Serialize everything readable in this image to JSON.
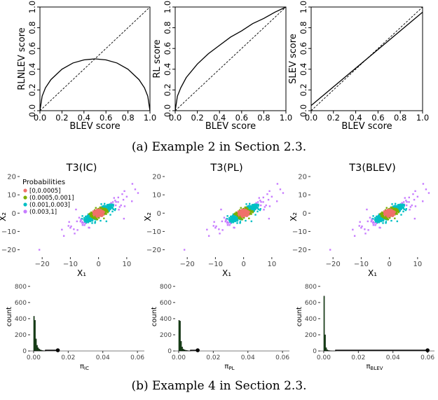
{
  "figure": {
    "caption_a": "(a) Example 2 in Section 2.3.",
    "caption_b": "(b) Example 4 in Section 2.3."
  },
  "chart_data": [
    {
      "id": "a1",
      "type": "line",
      "xlabel": "BLEV score",
      "ylabel": "RLNLEV score",
      "xlim": [
        0,
        1
      ],
      "ylim": [
        0,
        1
      ],
      "ticks": [
        "0.0",
        "0.2",
        "0.4",
        "0.6",
        "0.8",
        "1.0"
      ],
      "series": [
        {
          "style": "solid",
          "x": [
            0,
            0.02,
            0.05,
            0.1,
            0.2,
            0.3,
            0.4,
            0.5,
            0.6,
            0.7,
            0.8,
            0.9,
            0.95,
            0.98,
            1.0
          ],
          "y": [
            0,
            0.14,
            0.22,
            0.3,
            0.4,
            0.46,
            0.49,
            0.5,
            0.49,
            0.46,
            0.4,
            0.3,
            0.22,
            0.14,
            0
          ]
        },
        {
          "style": "dashed",
          "x": [
            0,
            1
          ],
          "y": [
            0,
            1
          ]
        }
      ]
    },
    {
      "id": "a2",
      "type": "line",
      "xlabel": "BLEV score",
      "ylabel": "RL score",
      "xlim": [
        0,
        1
      ],
      "ylim": [
        0,
        1
      ],
      "ticks": [
        "0.0",
        "0.2",
        "0.4",
        "0.6",
        "0.8",
        "1.0"
      ],
      "series": [
        {
          "style": "solid",
          "x": [
            0,
            0.02,
            0.05,
            0.1,
            0.2,
            0.3,
            0.4,
            0.5,
            0.6,
            0.7,
            0.8,
            0.9,
            1.0
          ],
          "y": [
            0,
            0.14,
            0.22,
            0.32,
            0.45,
            0.55,
            0.63,
            0.71,
            0.77,
            0.84,
            0.89,
            0.95,
            1.0
          ]
        },
        {
          "style": "dashed",
          "x": [
            0,
            1
          ],
          "y": [
            0,
            1
          ]
        }
      ]
    },
    {
      "id": "a3",
      "type": "line",
      "xlabel": "BLEV score",
      "ylabel": "SLEV score",
      "xlim": [
        0,
        1
      ],
      "ylim": [
        0,
        1
      ],
      "ticks": [
        "0.0",
        "0.2",
        "0.4",
        "0.6",
        "0.8",
        "1.0"
      ],
      "series": [
        {
          "style": "solid",
          "x": [
            0,
            1
          ],
          "y": [
            0.05,
            0.95
          ]
        },
        {
          "style": "dashed",
          "x": [
            0,
            1
          ],
          "y": [
            0,
            1
          ]
        }
      ]
    },
    {
      "id": "b1",
      "type": "scatter",
      "title": "T3(IC)",
      "xlabel": "X₁",
      "ylabel": "X₂",
      "xlim": [
        -28,
        16
      ],
      "ylim": [
        -24,
        20
      ],
      "xticks": [
        -20,
        -10,
        0,
        10
      ],
      "yticks": [
        -20,
        -10,
        0,
        10,
        20
      ],
      "legend": {
        "title": "Probabilities",
        "position": "top-left",
        "entries": [
          "[0,0.0005]",
          "(0.0005,0.001]",
          "(0.001,0.003]",
          "(0.003,1]"
        ]
      },
      "colors": [
        "#f0706a",
        "#7cae00",
        "#00bfc4",
        "#c77cff"
      ]
    },
    {
      "id": "b2",
      "type": "scatter",
      "title": "T3(PL)",
      "xlabel": "X₁",
      "ylabel": "X₂",
      "xlim": [
        -28,
        16
      ],
      "ylim": [
        -24,
        20
      ],
      "xticks": [
        -20,
        -10,
        0,
        10
      ],
      "yticks": [
        -20,
        -10,
        0,
        10,
        20
      ]
    },
    {
      "id": "b3",
      "type": "scatter",
      "title": "T3(BLEV)",
      "xlabel": "X₁",
      "ylabel": "X₂",
      "xlim": [
        -28,
        16
      ],
      "ylim": [
        -24,
        20
      ],
      "xticks": [
        -20,
        -10,
        0,
        10
      ],
      "yticks": [
        -20,
        -10,
        0,
        10,
        20
      ]
    },
    {
      "id": "c1",
      "type": "bar",
      "ylabel": "count",
      "xlabel": "π",
      "xlabel_sub": "IC",
      "xlim": [
        -0.002,
        0.064
      ],
      "ylim": [
        0,
        850
      ],
      "xticks": [
        "0.00",
        "0.02",
        "0.04",
        "0.06"
      ],
      "yticks": [
        0,
        200,
        400,
        600,
        800
      ],
      "bins": {
        "x": [
          0,
          0.0006,
          0.0012,
          0.0018,
          0.0024,
          0.003,
          0.0036,
          0.0042,
          0.0048,
          0.0054,
          0.006,
          0.0066
        ],
        "counts": [
          430,
          380,
          150,
          70,
          40,
          25,
          15,
          10,
          6,
          4,
          3,
          2
        ]
      },
      "max_point": 0.014
    },
    {
      "id": "c2",
      "type": "bar",
      "ylabel": "count",
      "xlabel": "π",
      "xlabel_sub": "PL",
      "xlim": [
        -0.002,
        0.064
      ],
      "ylim": [
        0,
        850
      ],
      "xticks": [
        "0.00",
        "0.02",
        "0.04",
        "0.06"
      ],
      "yticks": [
        0,
        200,
        400,
        600,
        800
      ],
      "bins": {
        "x": [
          0,
          0.0006,
          0.0012,
          0.0018,
          0.0024,
          0.003,
          0.0036,
          0.0042,
          0.0048,
          0.0054,
          0.006,
          0.0066
        ],
        "counts": [
          380,
          370,
          120,
          50,
          25,
          15,
          10,
          8,
          5,
          3,
          2,
          1
        ]
      },
      "max_point": 0.011
    },
    {
      "id": "c3",
      "type": "bar",
      "ylabel": "count",
      "xlabel": "π",
      "xlabel_sub": "BLEV",
      "xlim": [
        -0.002,
        0.064
      ],
      "ylim": [
        0,
        850
      ],
      "xticks": [
        "0.00",
        "0.02",
        "0.04",
        "0.06"
      ],
      "yticks": [
        0,
        200,
        400,
        600,
        800
      ],
      "bins": {
        "x": [
          0,
          0.0006,
          0.0012,
          0.0018,
          0.0024,
          0.003,
          0.0036,
          0.0042,
          0.0048,
          0.0054,
          0.006,
          0.0066
        ],
        "counts": [
          680,
          200,
          40,
          15,
          8,
          5,
          3,
          2,
          1,
          1,
          1,
          1
        ]
      },
      "max_point": 0.06
    }
  ]
}
